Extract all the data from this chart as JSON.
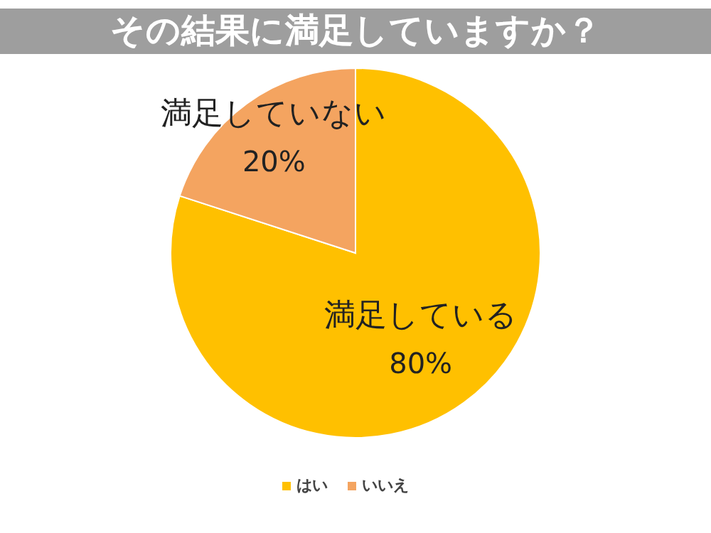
{
  "chart_data": {
    "type": "pie",
    "title": "その結果に満足していますか？",
    "categories": [
      "はい",
      "いいえ"
    ],
    "values": [
      80,
      20
    ],
    "colors": [
      "#ffc000",
      "#f4a460"
    ],
    "value_labels": [
      "80%",
      "20%"
    ],
    "annotations": [
      {
        "text": "満足している",
        "x": "はい"
      },
      {
        "text": "満足していない",
        "x": "いいえ"
      }
    ],
    "legend": "bottom"
  }
}
